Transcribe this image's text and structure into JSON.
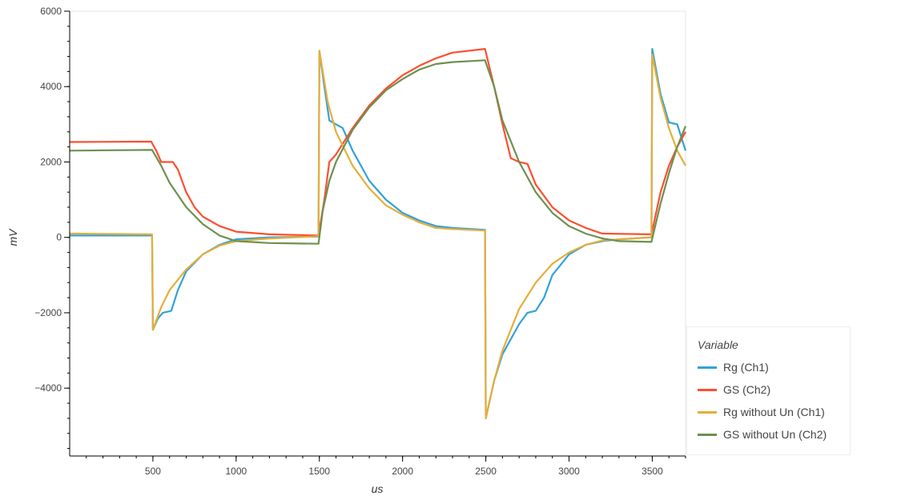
{
  "chart_data": {
    "type": "line",
    "xlabel": "us",
    "ylabel": "mV",
    "xlim": [
      0,
      3700
    ],
    "ylim": [
      -5800,
      6000
    ],
    "xticks": [
      500,
      1000,
      1500,
      2000,
      2500,
      3000,
      3500
    ],
    "yticks": [
      -4000,
      -2000,
      0,
      2000,
      4000,
      6000
    ],
    "ytick_labels": [
      "−4000",
      "−2000",
      "0",
      "2000",
      "4000",
      "6000"
    ],
    "grid": false,
    "legend": {
      "title": "Variable",
      "placement": "right-bottom outside"
    },
    "series": [
      {
        "name": "Rg (Ch1)",
        "color": "#30a2da",
        "points": [
          [
            0,
            50
          ],
          [
            495,
            50
          ],
          [
            500,
            -2450
          ],
          [
            530,
            -2150
          ],
          [
            560,
            -2000
          ],
          [
            610,
            -1950
          ],
          [
            650,
            -1400
          ],
          [
            700,
            -900
          ],
          [
            800,
            -450
          ],
          [
            900,
            -200
          ],
          [
            1000,
            -50
          ],
          [
            1200,
            0
          ],
          [
            1495,
            20
          ],
          [
            1500,
            4950
          ],
          [
            1530,
            4000
          ],
          [
            1560,
            3100
          ],
          [
            1600,
            3000
          ],
          [
            1640,
            2900
          ],
          [
            1700,
            2300
          ],
          [
            1800,
            1500
          ],
          [
            1900,
            1000
          ],
          [
            2000,
            650
          ],
          [
            2100,
            450
          ],
          [
            2200,
            300
          ],
          [
            2300,
            250
          ],
          [
            2495,
            200
          ],
          [
            2500,
            -4800
          ],
          [
            2550,
            -3800
          ],
          [
            2600,
            -3100
          ],
          [
            2700,
            -2300
          ],
          [
            2750,
            -2000
          ],
          [
            2800,
            -1950
          ],
          [
            2850,
            -1600
          ],
          [
            2900,
            -1000
          ],
          [
            3000,
            -450
          ],
          [
            3100,
            -200
          ],
          [
            3200,
            -100
          ],
          [
            3300,
            -50
          ],
          [
            3495,
            0
          ],
          [
            3500,
            5000
          ],
          [
            3550,
            3800
          ],
          [
            3600,
            3050
          ],
          [
            3650,
            3000
          ],
          [
            3700,
            2300
          ]
        ]
      },
      {
        "name": "GS (Ch2)",
        "color": "#fc4f30",
        "points": [
          [
            0,
            2530
          ],
          [
            490,
            2540
          ],
          [
            520,
            2300
          ],
          [
            550,
            2000
          ],
          [
            620,
            2000
          ],
          [
            650,
            1800
          ],
          [
            700,
            1200
          ],
          [
            750,
            800
          ],
          [
            800,
            550
          ],
          [
            900,
            300
          ],
          [
            1000,
            150
          ],
          [
            1200,
            80
          ],
          [
            1495,
            50
          ],
          [
            1530,
            1000
          ],
          [
            1560,
            2000
          ],
          [
            1600,
            2200
          ],
          [
            1700,
            2900
          ],
          [
            1800,
            3500
          ],
          [
            1900,
            3950
          ],
          [
            2000,
            4300
          ],
          [
            2100,
            4550
          ],
          [
            2200,
            4750
          ],
          [
            2300,
            4900
          ],
          [
            2495,
            5000
          ],
          [
            2550,
            4000
          ],
          [
            2600,
            3000
          ],
          [
            2650,
            2100
          ],
          [
            2700,
            2000
          ],
          [
            2750,
            1950
          ],
          [
            2800,
            1400
          ],
          [
            2900,
            800
          ],
          [
            3000,
            450
          ],
          [
            3100,
            250
          ],
          [
            3200,
            100
          ],
          [
            3495,
            80
          ],
          [
            3550,
            1200
          ],
          [
            3600,
            1900
          ],
          [
            3650,
            2400
          ],
          [
            3700,
            2800
          ]
        ]
      },
      {
        "name": "Rg without Un (Ch1)",
        "color": "#e5ae38",
        "points": [
          [
            0,
            100
          ],
          [
            495,
            80
          ],
          [
            500,
            -2450
          ],
          [
            550,
            -1850
          ],
          [
            600,
            -1400
          ],
          [
            700,
            -850
          ],
          [
            800,
            -450
          ],
          [
            900,
            -220
          ],
          [
            1000,
            -100
          ],
          [
            1200,
            -30
          ],
          [
            1495,
            30
          ],
          [
            1500,
            4950
          ],
          [
            1550,
            3600
          ],
          [
            1600,
            2800
          ],
          [
            1700,
            1900
          ],
          [
            1800,
            1300
          ],
          [
            1900,
            850
          ],
          [
            2000,
            600
          ],
          [
            2100,
            400
          ],
          [
            2200,
            250
          ],
          [
            2300,
            220
          ],
          [
            2495,
            180
          ],
          [
            2500,
            -4800
          ],
          [
            2550,
            -3800
          ],
          [
            2600,
            -3000
          ],
          [
            2700,
            -1900
          ],
          [
            2800,
            -1200
          ],
          [
            2900,
            -700
          ],
          [
            3000,
            -400
          ],
          [
            3100,
            -200
          ],
          [
            3200,
            -80
          ],
          [
            3495,
            0
          ],
          [
            3500,
            4850
          ],
          [
            3550,
            3700
          ],
          [
            3600,
            2900
          ],
          [
            3650,
            2300
          ],
          [
            3700,
            1900
          ]
        ]
      },
      {
        "name": "GS without Un (Ch2)",
        "color": "#6d904f",
        "points": [
          [
            0,
            2300
          ],
          [
            495,
            2320
          ],
          [
            550,
            1900
          ],
          [
            600,
            1450
          ],
          [
            700,
            800
          ],
          [
            800,
            350
          ],
          [
            900,
            50
          ],
          [
            1000,
            -100
          ],
          [
            1200,
            -150
          ],
          [
            1495,
            -170
          ],
          [
            1520,
            700
          ],
          [
            1560,
            1500
          ],
          [
            1600,
            2000
          ],
          [
            1700,
            2850
          ],
          [
            1800,
            3450
          ],
          [
            1900,
            3900
          ],
          [
            2000,
            4200
          ],
          [
            2100,
            4450
          ],
          [
            2200,
            4600
          ],
          [
            2300,
            4650
          ],
          [
            2495,
            4700
          ],
          [
            2550,
            4000
          ],
          [
            2600,
            3100
          ],
          [
            2700,
            2000
          ],
          [
            2800,
            1200
          ],
          [
            2900,
            650
          ],
          [
            3000,
            300
          ],
          [
            3100,
            100
          ],
          [
            3200,
            -30
          ],
          [
            3300,
            -100
          ],
          [
            3495,
            -120
          ],
          [
            3550,
            900
          ],
          [
            3600,
            1700
          ],
          [
            3650,
            2400
          ],
          [
            3700,
            2950
          ]
        ]
      }
    ]
  }
}
